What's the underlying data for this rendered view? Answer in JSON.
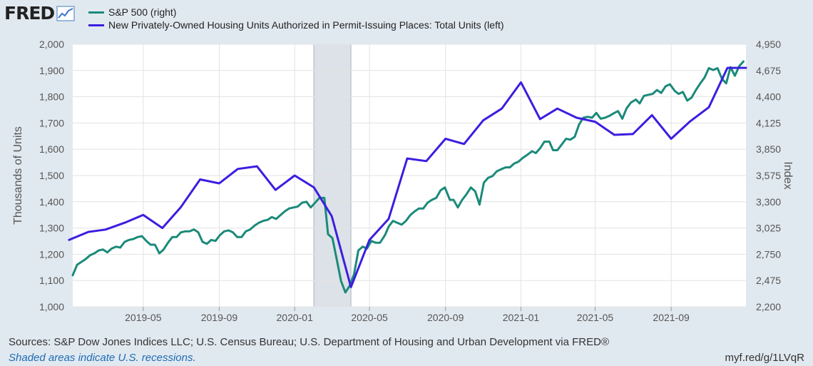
{
  "logo": {
    "text": "FRED",
    "icon": "line-chart-icon"
  },
  "legend": [
    {
      "label": "S&P 500 (right)",
      "color": "#1b8a7a"
    },
    {
      "label": "New Privately-Owned Housing Units Authorized in Permit-Issuing Places: Total Units (left)",
      "color": "#3b1ee0"
    }
  ],
  "footer": {
    "sources": "Sources: S&P Dow Jones Indices LLC; U.S. Census Bureau; U.S. Department of Housing and Urban Development via FRED®",
    "recession_note": "Shaded areas indicate U.S. recessions.",
    "short_url": "myf.red/g/1LVqR"
  },
  "chart_data": {
    "type": "line",
    "ylabel_left": "Thousands of Units",
    "ylabel_right": "Index",
    "left_axis": {
      "min": 1000,
      "max": 2000,
      "ticks": [
        "1,000",
        "1,100",
        "1,200",
        "1,300",
        "1,400",
        "1,500",
        "1,600",
        "1,700",
        "1,800",
        "1,900",
        "2,000"
      ]
    },
    "right_axis": {
      "min": 2200,
      "max": 4950,
      "ticks": [
        "2,200",
        "2,475",
        "2,750",
        "3,025",
        "3,300",
        "3,575",
        "3,850",
        "4,125",
        "4,400",
        "4,675",
        "4,950"
      ]
    },
    "x_range": [
      "2019-01-07",
      "2021-12-31"
    ],
    "x_ticks": [
      {
        "date": "2019-05-01",
        "label": "2019-05"
      },
      {
        "date": "2019-09-01",
        "label": "2019-09"
      },
      {
        "date": "2020-01-01",
        "label": "2020-01"
      },
      {
        "date": "2020-05-01",
        "label": "2020-05"
      },
      {
        "date": "2020-09-01",
        "label": "2020-09"
      },
      {
        "date": "2021-01-01",
        "label": "2021-01"
      },
      {
        "date": "2021-05-01",
        "label": "2021-05"
      },
      {
        "date": "2021-09-01",
        "label": "2021-09"
      }
    ],
    "recession": {
      "start": "2020-02-01",
      "end": "2020-04-01",
      "color": "#dde2e8"
    },
    "grid": true,
    "series": [
      {
        "name": "S&P 500 (right)",
        "axis": "right",
        "color": "#1b8a7a",
        "points": [
          [
            "2019-01-07",
            2530
          ],
          [
            "2019-01-14",
            2640
          ],
          [
            "2019-01-21",
            2670
          ],
          [
            "2019-01-28",
            2700
          ],
          [
            "2019-02-04",
            2740
          ],
          [
            "2019-02-11",
            2760
          ],
          [
            "2019-02-18",
            2790
          ],
          [
            "2019-02-25",
            2800
          ],
          [
            "2019-03-04",
            2770
          ],
          [
            "2019-03-11",
            2810
          ],
          [
            "2019-03-18",
            2830
          ],
          [
            "2019-03-25",
            2820
          ],
          [
            "2019-04-01",
            2880
          ],
          [
            "2019-04-08",
            2900
          ],
          [
            "2019-04-15",
            2910
          ],
          [
            "2019-04-22",
            2930
          ],
          [
            "2019-04-29",
            2940
          ],
          [
            "2019-05-06",
            2890
          ],
          [
            "2019-05-13",
            2850
          ],
          [
            "2019-05-20",
            2850
          ],
          [
            "2019-05-27",
            2760
          ],
          [
            "2019-06-03",
            2800
          ],
          [
            "2019-06-10",
            2870
          ],
          [
            "2019-06-17",
            2930
          ],
          [
            "2019-06-24",
            2930
          ],
          [
            "2019-07-01",
            2980
          ],
          [
            "2019-07-08",
            2990
          ],
          [
            "2019-07-15",
            2990
          ],
          [
            "2019-07-22",
            3010
          ],
          [
            "2019-07-29",
            2980
          ],
          [
            "2019-08-05",
            2880
          ],
          [
            "2019-08-12",
            2860
          ],
          [
            "2019-08-19",
            2900
          ],
          [
            "2019-08-26",
            2890
          ],
          [
            "2019-09-02",
            2950
          ],
          [
            "2019-09-09",
            2990
          ],
          [
            "2019-09-16",
            3000
          ],
          [
            "2019-09-23",
            2980
          ],
          [
            "2019-09-30",
            2930
          ],
          [
            "2019-10-07",
            2930
          ],
          [
            "2019-10-14",
            2990
          ],
          [
            "2019-10-21",
            3010
          ],
          [
            "2019-10-28",
            3050
          ],
          [
            "2019-11-04",
            3080
          ],
          [
            "2019-11-11",
            3100
          ],
          [
            "2019-11-18",
            3110
          ],
          [
            "2019-11-25",
            3140
          ],
          [
            "2019-12-02",
            3120
          ],
          [
            "2019-12-09",
            3160
          ],
          [
            "2019-12-16",
            3200
          ],
          [
            "2019-12-23",
            3230
          ],
          [
            "2019-12-30",
            3240
          ],
          [
            "2020-01-06",
            3250
          ],
          [
            "2020-01-13",
            3290
          ],
          [
            "2020-01-20",
            3300
          ],
          [
            "2020-01-27",
            3240
          ],
          [
            "2020-02-03",
            3290
          ],
          [
            "2020-02-10",
            3340
          ],
          [
            "2020-02-18",
            3340
          ],
          [
            "2020-02-24",
            2960
          ],
          [
            "2020-03-02",
            2920
          ],
          [
            "2020-03-09",
            2700
          ],
          [
            "2020-03-16",
            2470
          ],
          [
            "2020-03-23",
            2350
          ],
          [
            "2020-03-30",
            2420
          ],
          [
            "2020-04-06",
            2540
          ],
          [
            "2020-04-13",
            2790
          ],
          [
            "2020-04-20",
            2830
          ],
          [
            "2020-04-27",
            2810
          ],
          [
            "2020-05-04",
            2890
          ],
          [
            "2020-05-11",
            2870
          ],
          [
            "2020-05-18",
            2870
          ],
          [
            "2020-05-26",
            2950
          ],
          [
            "2020-06-01",
            3040
          ],
          [
            "2020-06-08",
            3100
          ],
          [
            "2020-06-15",
            3080
          ],
          [
            "2020-06-22",
            3060
          ],
          [
            "2020-06-29",
            3100
          ],
          [
            "2020-07-06",
            3160
          ],
          [
            "2020-07-13",
            3200
          ],
          [
            "2020-07-20",
            3230
          ],
          [
            "2020-07-27",
            3230
          ],
          [
            "2020-08-03",
            3290
          ],
          [
            "2020-08-10",
            3320
          ],
          [
            "2020-08-17",
            3340
          ],
          [
            "2020-08-24",
            3420
          ],
          [
            "2020-08-31",
            3450
          ],
          [
            "2020-09-08",
            3320
          ],
          [
            "2020-09-14",
            3320
          ],
          [
            "2020-09-21",
            3240
          ],
          [
            "2020-09-28",
            3320
          ],
          [
            "2020-10-05",
            3380
          ],
          [
            "2020-10-12",
            3450
          ],
          [
            "2020-10-19",
            3410
          ],
          [
            "2020-10-26",
            3270
          ],
          [
            "2020-11-02",
            3500
          ],
          [
            "2020-11-09",
            3550
          ],
          [
            "2020-11-16",
            3570
          ],
          [
            "2020-11-23",
            3620
          ],
          [
            "2020-11-30",
            3640
          ],
          [
            "2020-12-07",
            3660
          ],
          [
            "2020-12-14",
            3660
          ],
          [
            "2020-12-21",
            3700
          ],
          [
            "2020-12-28",
            3720
          ],
          [
            "2021-01-04",
            3760
          ],
          [
            "2021-01-11",
            3790
          ],
          [
            "2021-01-19",
            3830
          ],
          [
            "2021-01-25",
            3810
          ],
          [
            "2021-02-01",
            3860
          ],
          [
            "2021-02-08",
            3930
          ],
          [
            "2021-02-16",
            3930
          ],
          [
            "2021-02-22",
            3840
          ],
          [
            "2021-03-01",
            3840
          ],
          [
            "2021-03-08",
            3900
          ],
          [
            "2021-03-15",
            3960
          ],
          [
            "2021-03-22",
            3950
          ],
          [
            "2021-03-29",
            3980
          ],
          [
            "2021-04-05",
            4110
          ],
          [
            "2021-04-12",
            4180
          ],
          [
            "2021-04-19",
            4190
          ],
          [
            "2021-04-26",
            4180
          ],
          [
            "2021-05-03",
            4230
          ],
          [
            "2021-05-10",
            4170
          ],
          [
            "2021-05-17",
            4180
          ],
          [
            "2021-05-24",
            4200
          ],
          [
            "2021-06-01",
            4230
          ],
          [
            "2021-06-07",
            4250
          ],
          [
            "2021-06-14",
            4170
          ],
          [
            "2021-06-21",
            4280
          ],
          [
            "2021-06-28",
            4340
          ],
          [
            "2021-07-06",
            4370
          ],
          [
            "2021-07-12",
            4330
          ],
          [
            "2021-07-19",
            4410
          ],
          [
            "2021-07-26",
            4420
          ],
          [
            "2021-08-02",
            4430
          ],
          [
            "2021-08-09",
            4470
          ],
          [
            "2021-08-16",
            4440
          ],
          [
            "2021-08-23",
            4510
          ],
          [
            "2021-08-30",
            4530
          ],
          [
            "2021-09-07",
            4460
          ],
          [
            "2021-09-13",
            4430
          ],
          [
            "2021-09-20",
            4450
          ],
          [
            "2021-09-27",
            4360
          ],
          [
            "2021-10-04",
            4390
          ],
          [
            "2021-10-11",
            4470
          ],
          [
            "2021-10-18",
            4540
          ],
          [
            "2021-10-25",
            4600
          ],
          [
            "2021-11-01",
            4700
          ],
          [
            "2021-11-08",
            4680
          ],
          [
            "2021-11-15",
            4700
          ],
          [
            "2021-11-22",
            4590
          ],
          [
            "2021-11-29",
            4540
          ],
          [
            "2021-12-06",
            4710
          ],
          [
            "2021-12-13",
            4620
          ],
          [
            "2021-12-20",
            4720
          ],
          [
            "2021-12-27",
            4770
          ]
        ]
      },
      {
        "name": "New Privately-Owned Housing Units Authorized in Permit-Issuing Places: Total Units (left)",
        "axis": "left",
        "color": "#3b1ee0",
        "points": [
          [
            "2019-01-01",
            1255
          ],
          [
            "2019-02-01",
            1285
          ],
          [
            "2019-03-01",
            1294
          ],
          [
            "2019-04-01",
            1320
          ],
          [
            "2019-05-01",
            1350
          ],
          [
            "2019-06-01",
            1300
          ],
          [
            "2019-07-01",
            1380
          ],
          [
            "2019-08-01",
            1485
          ],
          [
            "2019-09-01",
            1470
          ],
          [
            "2019-10-01",
            1525
          ],
          [
            "2019-11-01",
            1535
          ],
          [
            "2019-12-01",
            1445
          ],
          [
            "2020-01-01",
            1500
          ],
          [
            "2020-02-01",
            1455
          ],
          [
            "2020-03-01",
            1345
          ],
          [
            "2020-04-01",
            1075
          ],
          [
            "2020-05-01",
            1255
          ],
          [
            "2020-06-01",
            1335
          ],
          [
            "2020-07-01",
            1565
          ],
          [
            "2020-08-01",
            1555
          ],
          [
            "2020-09-01",
            1640
          ],
          [
            "2020-10-01",
            1620
          ],
          [
            "2020-11-01",
            1710
          ],
          [
            "2020-12-01",
            1755
          ],
          [
            "2021-01-01",
            1855
          ],
          [
            "2021-02-01",
            1715
          ],
          [
            "2021-03-01",
            1755
          ],
          [
            "2021-04-01",
            1720
          ],
          [
            "2021-05-01",
            1705
          ],
          [
            "2021-06-01",
            1655
          ],
          [
            "2021-07-01",
            1658
          ],
          [
            "2021-08-01",
            1730
          ],
          [
            "2021-09-01",
            1640
          ],
          [
            "2021-10-01",
            1705
          ],
          [
            "2021-11-01",
            1760
          ],
          [
            "2021-12-01",
            1910
          ],
          [
            "2021-12-31",
            1910
          ]
        ]
      }
    ]
  }
}
